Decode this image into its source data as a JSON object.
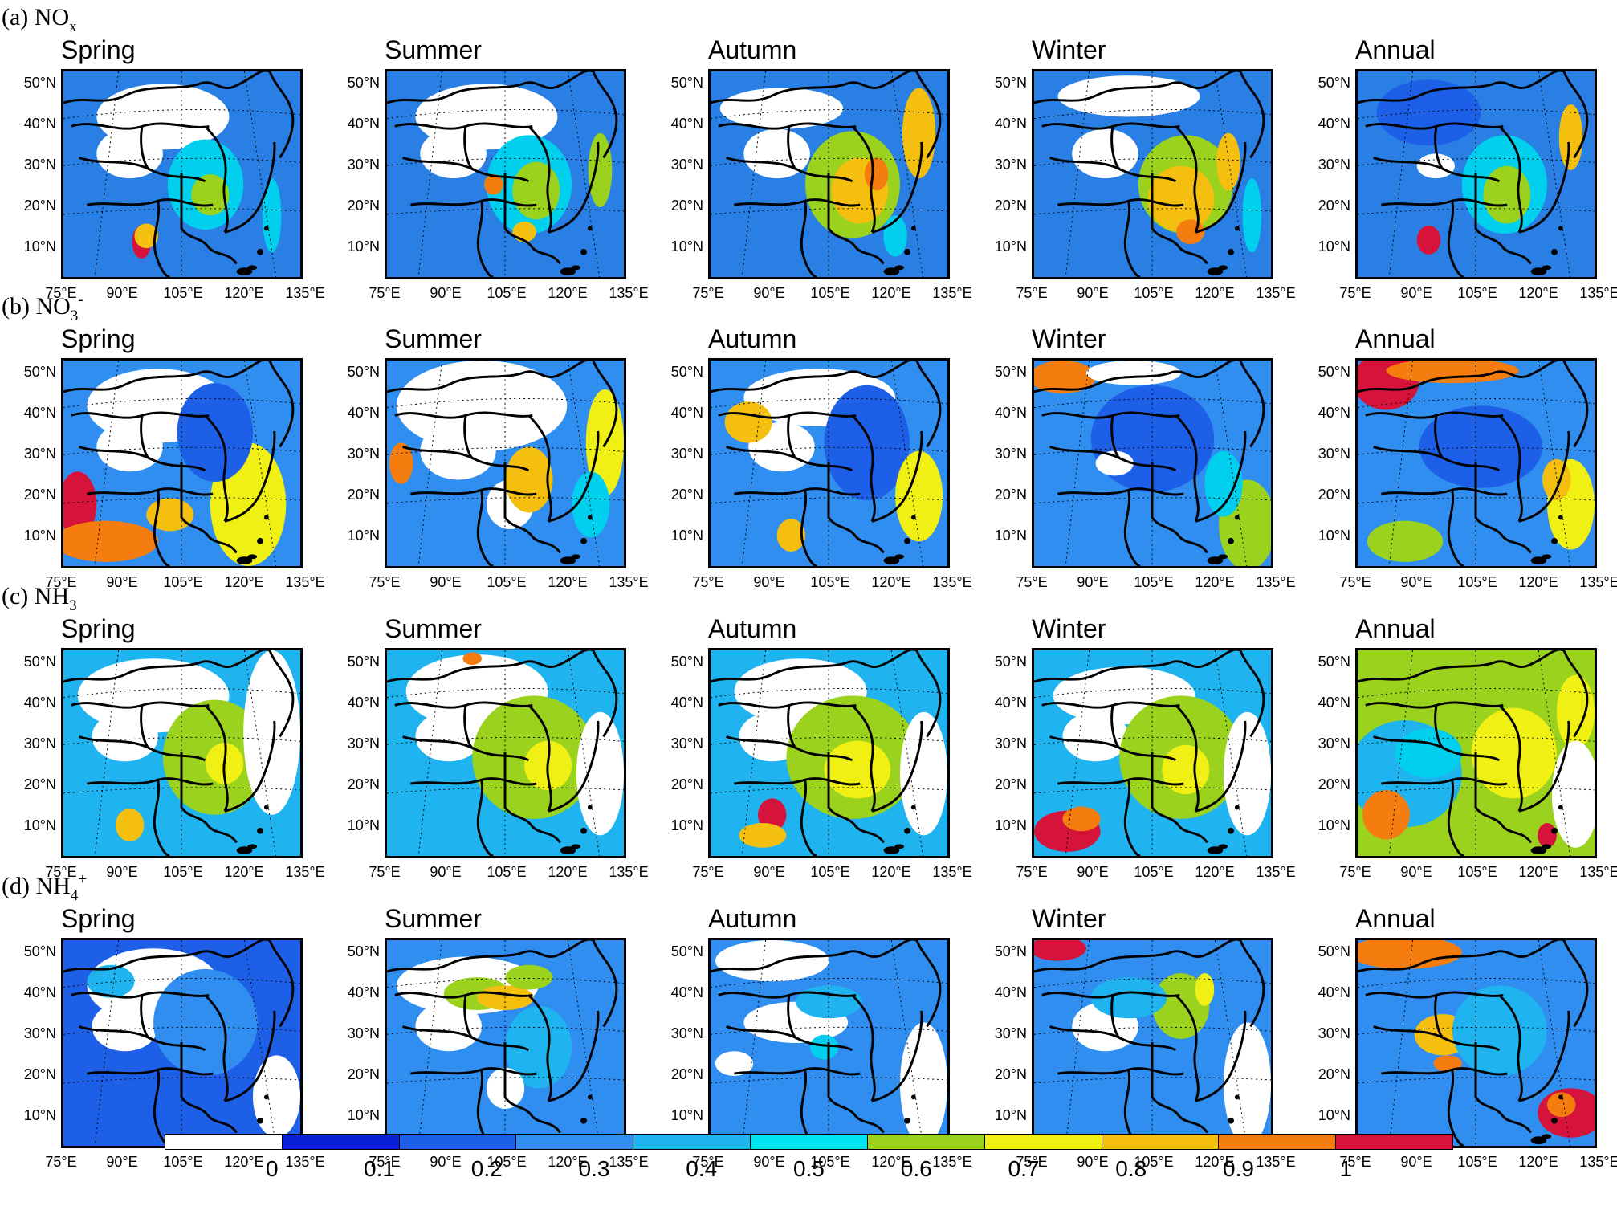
{
  "rows": [
    {
      "prefix": "(a) NO",
      "sub": "x",
      "sup": ""
    },
    {
      "prefix": "(b) NO",
      "sub": "3",
      "sup": "-"
    },
    {
      "prefix": "(c) NH",
      "sub": "3",
      "sup": ""
    },
    {
      "prefix": "(d) NH",
      "sub": "4",
      "sup": "+"
    }
  ],
  "seasons": [
    "Spring",
    "Summer",
    "Autumn",
    "Winter",
    "Annual"
  ],
  "lat_labels": [
    "50°N",
    "40°N",
    "30°N",
    "20°N",
    "10°N"
  ],
  "lon_labels": [
    "75°E",
    "90°E",
    "105°E",
    "120°E",
    "135°E"
  ],
  "colorbar": {
    "labels": [
      "0",
      "0.1",
      "0.2",
      "0.3",
      "0.4",
      "0.5",
      "0.6",
      "0.7",
      "0.8",
      "0.9",
      "1"
    ],
    "colors": [
      "#ffffff",
      "#0a1fd6",
      "#1e5fe8",
      "#2f8ef0",
      "#1fb4f0",
      "#00e6f0",
      "#9ad21e",
      "#f0f014",
      "#f5bf10",
      "#f57d0f",
      "#d6133a"
    ]
  },
  "panels": [
    [
      {
        "base": "#2a7fe4",
        "blobs": [
          [
            "#ffffff",
            0.42,
            0.22,
            0.28,
            0.16
          ],
          [
            "#ffffff",
            0.28,
            0.4,
            0.14,
            0.12
          ],
          [
            "#00d0ee",
            0.6,
            0.55,
            0.16,
            0.22
          ],
          [
            "#9ad21e",
            0.62,
            0.6,
            0.08,
            0.1
          ],
          [
            "#d6133a",
            0.33,
            0.83,
            0.04,
            0.08
          ],
          [
            "#f5bf10",
            0.35,
            0.8,
            0.05,
            0.06
          ],
          [
            "#00d0ee",
            0.88,
            0.7,
            0.04,
            0.18
          ]
        ]
      },
      {
        "base": "#2a7fe4",
        "blobs": [
          [
            "#ffffff",
            0.42,
            0.22,
            0.3,
            0.16
          ],
          [
            "#ffffff",
            0.28,
            0.4,
            0.14,
            0.12
          ],
          [
            "#00d0ee",
            0.6,
            0.55,
            0.18,
            0.24
          ],
          [
            "#9ad21e",
            0.63,
            0.58,
            0.1,
            0.14
          ],
          [
            "#f57d0f",
            0.45,
            0.55,
            0.04,
            0.05
          ],
          [
            "#f5bf10",
            0.58,
            0.78,
            0.05,
            0.05
          ],
          [
            "#9ad21e",
            0.9,
            0.48,
            0.05,
            0.18
          ]
        ]
      },
      {
        "base": "#2a7fe4",
        "blobs": [
          [
            "#ffffff",
            0.3,
            0.18,
            0.26,
            0.1
          ],
          [
            "#ffffff",
            0.28,
            0.4,
            0.14,
            0.12
          ],
          [
            "#9ad21e",
            0.6,
            0.55,
            0.2,
            0.26
          ],
          [
            "#f5bf10",
            0.63,
            0.58,
            0.12,
            0.16
          ],
          [
            "#f57d0f",
            0.7,
            0.5,
            0.05,
            0.08
          ],
          [
            "#f5bf10",
            0.88,
            0.3,
            0.07,
            0.22
          ],
          [
            "#00d0ee",
            0.78,
            0.8,
            0.05,
            0.1
          ]
        ]
      },
      {
        "base": "#2a7fe4",
        "blobs": [
          [
            "#ffffff",
            0.4,
            0.12,
            0.3,
            0.1
          ],
          [
            "#ffffff",
            0.3,
            0.4,
            0.14,
            0.12
          ],
          [
            "#9ad21e",
            0.64,
            0.55,
            0.2,
            0.24
          ],
          [
            "#f5bf10",
            0.62,
            0.62,
            0.14,
            0.16
          ],
          [
            "#f57d0f",
            0.66,
            0.78,
            0.06,
            0.06
          ],
          [
            "#f5bf10",
            0.82,
            0.44,
            0.05,
            0.14
          ],
          [
            "#00d0ee",
            0.92,
            0.7,
            0.04,
            0.18
          ]
        ]
      },
      {
        "base": "#2a7fe4",
        "blobs": [
          [
            "#ffffff",
            0.33,
            0.46,
            0.08,
            0.06
          ],
          [
            "#00d0ee",
            0.62,
            0.55,
            0.18,
            0.24
          ],
          [
            "#9ad21e",
            0.63,
            0.6,
            0.1,
            0.14
          ],
          [
            "#d6133a",
            0.3,
            0.82,
            0.05,
            0.07
          ],
          [
            "#f5bf10",
            0.9,
            0.32,
            0.05,
            0.16
          ],
          [
            "#1e5fe8",
            0.3,
            0.2,
            0.22,
            0.16
          ]
        ]
      }
    ],
    [
      {
        "base": "#2f8ef0",
        "blobs": [
          [
            "#ffffff",
            0.4,
            0.22,
            0.3,
            0.18
          ],
          [
            "#ffffff",
            0.28,
            0.42,
            0.14,
            0.12
          ],
          [
            "#d6133a",
            0.06,
            0.7,
            0.08,
            0.16
          ],
          [
            "#f57d0f",
            0.18,
            0.88,
            0.22,
            0.1
          ],
          [
            "#f0f014",
            0.78,
            0.7,
            0.16,
            0.3
          ],
          [
            "#f5bf10",
            0.45,
            0.75,
            0.1,
            0.08
          ],
          [
            "#1e5fe8",
            0.64,
            0.35,
            0.16,
            0.24
          ]
        ]
      },
      {
        "base": "#2f8ef0",
        "blobs": [
          [
            "#ffffff",
            0.4,
            0.22,
            0.36,
            0.22
          ],
          [
            "#ffffff",
            0.3,
            0.44,
            0.16,
            0.14
          ],
          [
            "#ffffff",
            0.52,
            0.7,
            0.1,
            0.12
          ],
          [
            "#f57d0f",
            0.06,
            0.5,
            0.05,
            0.1
          ],
          [
            "#f5bf10",
            0.6,
            0.58,
            0.1,
            0.16
          ],
          [
            "#f0f014",
            0.92,
            0.4,
            0.08,
            0.26
          ],
          [
            "#00d0ee",
            0.86,
            0.7,
            0.08,
            0.16
          ]
        ]
      },
      {
        "base": "#2f8ef0",
        "blobs": [
          [
            "#ffffff",
            0.46,
            0.18,
            0.32,
            0.14
          ],
          [
            "#ffffff",
            0.3,
            0.42,
            0.14,
            0.12
          ],
          [
            "#f5bf10",
            0.16,
            0.3,
            0.1,
            0.1
          ],
          [
            "#1e5fe8",
            0.66,
            0.4,
            0.18,
            0.28
          ],
          [
            "#f0f014",
            0.88,
            0.66,
            0.1,
            0.22
          ],
          [
            "#f5bf10",
            0.34,
            0.85,
            0.06,
            0.08
          ]
        ]
      },
      {
        "base": "#2f8ef0",
        "blobs": [
          [
            "#f57d0f",
            0.12,
            0.08,
            0.14,
            0.08
          ],
          [
            "#ffffff",
            0.42,
            0.06,
            0.2,
            0.06
          ],
          [
            "#1e5fe8",
            0.5,
            0.38,
            0.26,
            0.26
          ],
          [
            "#ffffff",
            0.34,
            0.5,
            0.08,
            0.06
          ],
          [
            "#9ad21e",
            0.9,
            0.8,
            0.12,
            0.22
          ],
          [
            "#00d0ee",
            0.8,
            0.6,
            0.08,
            0.16
          ]
        ]
      },
      {
        "base": "#2f8ef0",
        "blobs": [
          [
            "#d6133a",
            0.12,
            0.1,
            0.14,
            0.14
          ],
          [
            "#f57d0f",
            0.4,
            0.05,
            0.28,
            0.06
          ],
          [
            "#1e5fe8",
            0.52,
            0.42,
            0.26,
            0.2
          ],
          [
            "#f0f014",
            0.9,
            0.7,
            0.1,
            0.22
          ],
          [
            "#9ad21e",
            0.2,
            0.88,
            0.16,
            0.1
          ],
          [
            "#f5bf10",
            0.84,
            0.58,
            0.06,
            0.1
          ]
        ]
      }
    ],
    [
      {
        "base": "#1fb4f0",
        "blobs": [
          [
            "#ffffff",
            0.38,
            0.22,
            0.32,
            0.18
          ],
          [
            "#ffffff",
            0.26,
            0.42,
            0.14,
            0.12
          ],
          [
            "#9ad21e",
            0.64,
            0.52,
            0.22,
            0.28
          ],
          [
            "#f0f014",
            0.68,
            0.55,
            0.08,
            0.1
          ],
          [
            "#f5bf10",
            0.28,
            0.85,
            0.06,
            0.08
          ],
          [
            "#ffffff",
            0.88,
            0.4,
            0.12,
            0.4
          ]
        ]
      },
      {
        "base": "#1fb4f0",
        "blobs": [
          [
            "#ffffff",
            0.38,
            0.2,
            0.3,
            0.18
          ],
          [
            "#ffffff",
            0.26,
            0.42,
            0.14,
            0.12
          ],
          [
            "#9ad21e",
            0.62,
            0.52,
            0.26,
            0.3
          ],
          [
            "#f0f014",
            0.68,
            0.56,
            0.1,
            0.12
          ],
          [
            "#f57d0f",
            0.36,
            0.04,
            0.04,
            0.03
          ],
          [
            "#ffffff",
            0.9,
            0.6,
            0.1,
            0.3
          ]
        ]
      },
      {
        "base": "#1fb4f0",
        "blobs": [
          [
            "#ffffff",
            0.38,
            0.2,
            0.28,
            0.16
          ],
          [
            "#ffffff",
            0.26,
            0.42,
            0.14,
            0.12
          ],
          [
            "#9ad21e",
            0.6,
            0.52,
            0.28,
            0.3
          ],
          [
            "#f0f014",
            0.62,
            0.58,
            0.14,
            0.14
          ],
          [
            "#d6133a",
            0.26,
            0.8,
            0.06,
            0.08
          ],
          [
            "#f5bf10",
            0.22,
            0.9,
            0.1,
            0.06
          ],
          [
            "#ffffff",
            0.9,
            0.6,
            0.1,
            0.3
          ]
        ]
      },
      {
        "base": "#1fb4f0",
        "blobs": [
          [
            "#ffffff",
            0.38,
            0.22,
            0.3,
            0.14
          ],
          [
            "#ffffff",
            0.26,
            0.42,
            0.14,
            0.12
          ],
          [
            "#9ad21e",
            0.62,
            0.52,
            0.26,
            0.3
          ],
          [
            "#f0f014",
            0.64,
            0.58,
            0.1,
            0.12
          ],
          [
            "#d6133a",
            0.14,
            0.88,
            0.14,
            0.1
          ],
          [
            "#f57d0f",
            0.2,
            0.82,
            0.08,
            0.06
          ],
          [
            "#ffffff",
            0.9,
            0.6,
            0.1,
            0.3
          ]
        ]
      },
      {
        "base": "#9ad21e",
        "blobs": [
          [
            "#1fb4f0",
            0.2,
            0.6,
            0.24,
            0.26
          ],
          [
            "#00d0ee",
            0.3,
            0.5,
            0.14,
            0.12
          ],
          [
            "#f0f014",
            0.66,
            0.5,
            0.18,
            0.22
          ],
          [
            "#f57d0f",
            0.12,
            0.8,
            0.1,
            0.12
          ],
          [
            "#d6133a",
            0.8,
            0.9,
            0.04,
            0.06
          ],
          [
            "#f0f014",
            0.92,
            0.3,
            0.08,
            0.18
          ],
          [
            "#ffffff",
            0.92,
            0.7,
            0.1,
            0.26
          ]
        ]
      }
    ],
    [
      {
        "base": "#1e5fe8",
        "blobs": [
          [
            "#ffffff",
            0.38,
            0.22,
            0.28,
            0.18
          ],
          [
            "#ffffff",
            0.26,
            0.42,
            0.14,
            0.12
          ],
          [
            "#2f8ef0",
            0.6,
            0.4,
            0.22,
            0.26
          ],
          [
            "#1fb4f0",
            0.2,
            0.2,
            0.1,
            0.08
          ],
          [
            "#ffffff",
            0.9,
            0.76,
            0.1,
            0.2
          ]
        ]
      },
      {
        "base": "#2f8ef0",
        "blobs": [
          [
            "#ffffff",
            0.34,
            0.22,
            0.3,
            0.14
          ],
          [
            "#ffffff",
            0.26,
            0.42,
            0.14,
            0.12
          ],
          [
            "#9ad21e",
            0.38,
            0.26,
            0.14,
            0.08
          ],
          [
            "#f5bf10",
            0.5,
            0.28,
            0.12,
            0.06
          ],
          [
            "#9ad21e",
            0.6,
            0.18,
            0.1,
            0.06
          ],
          [
            "#1fb4f0",
            0.64,
            0.52,
            0.14,
            0.2
          ],
          [
            "#ffffff",
            0.5,
            0.72,
            0.08,
            0.1
          ]
        ]
      },
      {
        "base": "#2f8ef0",
        "blobs": [
          [
            "#ffffff",
            0.26,
            0.1,
            0.24,
            0.1
          ],
          [
            "#ffffff",
            0.36,
            0.4,
            0.22,
            0.1
          ],
          [
            "#ffffff",
            0.1,
            0.6,
            0.08,
            0.06
          ],
          [
            "#1fb4f0",
            0.5,
            0.3,
            0.14,
            0.08
          ],
          [
            "#00d0ee",
            0.48,
            0.52,
            0.06,
            0.06
          ],
          [
            "#ffffff",
            0.9,
            0.7,
            0.1,
            0.3
          ]
        ]
      },
      {
        "base": "#2f8ef0",
        "blobs": [
          [
            "#d6133a",
            0.1,
            0.04,
            0.12,
            0.06
          ],
          [
            "#ffffff",
            0.3,
            0.42,
            0.14,
            0.12
          ],
          [
            "#9ad21e",
            0.62,
            0.32,
            0.12,
            0.16
          ],
          [
            "#f0f014",
            0.72,
            0.24,
            0.04,
            0.08
          ],
          [
            "#1fb4f0",
            0.4,
            0.28,
            0.16,
            0.1
          ],
          [
            "#ffffff",
            0.9,
            0.7,
            0.1,
            0.3
          ]
        ]
      },
      {
        "base": "#2f8ef0",
        "blobs": [
          [
            "#f57d0f",
            0.2,
            0.06,
            0.24,
            0.08
          ],
          [
            "#f5bf10",
            0.36,
            0.46,
            0.12,
            0.1
          ],
          [
            "#f57d0f",
            0.38,
            0.6,
            0.06,
            0.04
          ],
          [
            "#1fb4f0",
            0.6,
            0.44,
            0.2,
            0.22
          ],
          [
            "#d6133a",
            0.9,
            0.84,
            0.14,
            0.12
          ],
          [
            "#f57d0f",
            0.86,
            0.8,
            0.06,
            0.06
          ]
        ]
      }
    ]
  ]
}
